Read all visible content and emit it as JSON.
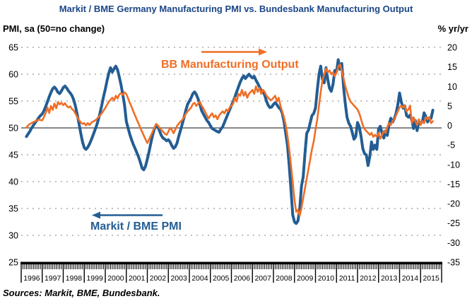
{
  "title": "Markit / BME Germany Manufacturing PMI vs. Bundesbank Manufacturing Output",
  "axes": {
    "left_label": "PMI, sa (50=no change)",
    "right_label": "% yr/yr",
    "left_ticks": [
      65,
      60,
      55,
      50,
      45,
      40,
      35,
      30,
      25
    ],
    "right_ticks": [
      20,
      15,
      10,
      5,
      0,
      -5,
      -10,
      -15,
      -20,
      -25,
      -30,
      -35
    ],
    "years": [
      "1996",
      "1997",
      "1998",
      "1999",
      "2000",
      "2001",
      "2002",
      "2003",
      "2004",
      "2005",
      "2006",
      "2007",
      "2008",
      "2009",
      "2010",
      "2011",
      "2012",
      "2013",
      "2014",
      "2015"
    ]
  },
  "legend": {
    "pmi_label": "Markit / BME PMI",
    "output_label": "BB Manufacturing Output"
  },
  "colors": {
    "pmi": "#235D93",
    "output": "#F06E26",
    "title": "#1B4687",
    "grid": "#808080",
    "baseline_50": "#404040",
    "axis": "#000000"
  },
  "sources": "Sources: Markit, BME, Bundesbank.",
  "chart_data": {
    "type": "line",
    "frequency": "monthly",
    "x_start": "1996-04",
    "x_end": "2015-08",
    "x_axis_years": [
      1996,
      2016
    ],
    "left_ylim": [
      25,
      65
    ],
    "right_ylim": [
      -35,
      20
    ],
    "grid": "dashed horizontal at every 5 units of left axis, solid line at 50 (=0 right axis)",
    "legend_position": "annotations with arrows inside plot",
    "series": [
      {
        "name": "Markit / BME Germany Manufacturing PMI",
        "short_name": "Markit / BME PMI",
        "axis": "left",
        "color": "#235D93",
        "line_width": 4,
        "values": [
          48.4,
          48.9,
          49.4,
          50.0,
          50.5,
          51.0,
          51.4,
          51.9,
          52.3,
          52.6,
          53.2,
          54.0,
          54.9,
          55.8,
          56.6,
          57.3,
          57.6,
          57.2,
          56.6,
          56.4,
          56.9,
          57.5,
          57.8,
          57.4,
          56.9,
          56.5,
          56.0,
          55.2,
          54.0,
          52.5,
          50.8,
          49.0,
          47.4,
          46.3,
          46.0,
          46.4,
          47.0,
          47.8,
          48.6,
          49.5,
          50.4,
          51.5,
          52.8,
          54.2,
          55.8,
          57.2,
          58.8,
          60.2,
          61.2,
          60.4,
          61.0,
          61.5,
          60.8,
          59.5,
          58.0,
          56.2,
          54.2,
          51.2,
          50.0,
          48.8,
          47.8,
          46.9,
          46.2,
          45.4,
          44.6,
          43.6,
          42.5,
          42.2,
          42.9,
          44.2,
          45.6,
          47.2,
          48.6,
          49.8,
          50.4,
          50.2,
          49.4,
          48.6,
          48.1,
          47.9,
          47.6,
          47.8,
          47.4,
          46.7,
          46.2,
          46.5,
          47.2,
          48.5,
          49.6,
          50.8,
          52.0,
          53.3,
          54.4,
          55.0,
          55.6,
          56.4,
          56.7,
          56.2,
          55.4,
          54.4,
          53.2,
          52.6,
          52.0,
          51.4,
          51.0,
          50.4,
          49.9,
          49.7,
          49.5,
          49.3,
          49.2,
          49.8,
          50.2,
          51.0,
          51.8,
          52.6,
          53.4,
          54.2,
          54.9,
          55.8,
          56.7,
          57.6,
          58.5,
          59.2,
          59.7,
          59.2,
          59.6,
          60.0,
          59.6,
          59.3,
          59.6,
          58.9,
          58.3,
          57.6,
          57.0,
          56.8,
          56.1,
          55.0,
          54.2,
          53.8,
          53.9,
          54.4,
          54.7,
          54.3,
          53.8,
          53.5,
          52.8,
          51.2,
          49.0,
          46.8,
          43.0,
          38.5,
          33.8,
          32.5,
          32.2,
          32.7,
          35.0,
          39.2,
          40.9,
          45.2,
          49.0,
          49.6,
          51.0,
          52.3,
          52.7,
          53.7,
          57.0,
          60.0,
          61.5,
          59.0,
          58.4,
          61.2,
          59.0,
          57.4,
          56.8,
          58.1,
          60.7,
          60.5,
          62.7,
          60.9,
          62.0,
          57.7,
          54.6,
          52.0,
          50.9,
          50.3,
          49.1,
          47.9,
          48.4,
          51.0,
          50.2,
          48.4,
          46.2,
          45.2,
          45.0,
          43.0,
          44.7,
          47.4,
          46.0,
          46.8,
          46.0,
          49.8,
          50.3,
          49.0,
          48.1,
          49.4,
          48.6,
          50.7,
          51.8,
          51.1,
          51.7,
          52.7,
          54.3,
          56.5,
          54.8,
          53.7,
          54.1,
          52.3,
          52.0,
          52.4,
          51.4,
          49.9,
          51.4,
          49.5,
          51.2,
          50.9,
          51.1,
          52.8,
          52.1,
          51.1,
          51.9,
          51.8,
          53.3
        ]
      },
      {
        "name": "Bundesbank Manufacturing Output (% yr/yr)",
        "short_name": "BB Manufacturing Output",
        "axis": "right",
        "color": "#F06E26",
        "line_width": 2.6,
        "values": [
          -0.5,
          0.0,
          0.4,
          0.6,
          0.9,
          1.1,
          1.3,
          1.5,
          1.4,
          1.3,
          2.2,
          3.2,
          4.6,
          3.2,
          5.0,
          4.0,
          5.6,
          4.4,
          6.0,
          5.4,
          5.8,
          5.2,
          5.7,
          5.0,
          4.6,
          4.9,
          4.2,
          3.8,
          3.0,
          2.2,
          1.4,
          0.8,
          0.4,
          0.6,
          0.0,
          0.6,
          0.1,
          0.7,
          1.0,
          1.2,
          1.6,
          2.1,
          2.6,
          3.1,
          3.8,
          4.5,
          5.3,
          6.1,
          6.6,
          7.1,
          6.4,
          7.6,
          6.9,
          7.9,
          8.3,
          7.8,
          8.5,
          8.0,
          7.0,
          5.8,
          4.8,
          3.6,
          2.6,
          1.5,
          0.5,
          -0.6,
          -1.6,
          -2.6,
          -3.6,
          -4.5,
          -3.6,
          -2.6,
          -1.6,
          -0.6,
          0.4,
          0.0,
          -0.6,
          -1.1,
          -1.6,
          -2.1,
          -2.4,
          -1.6,
          -0.6,
          -1.1,
          -2.0,
          -1.0,
          -0.1,
          0.5,
          1.0,
          1.5,
          2.1,
          3.0,
          3.6,
          4.1,
          4.6,
          5.5,
          5.8,
          5.0,
          5.6,
          6.1,
          5.0,
          4.4,
          3.5,
          2.6,
          1.8,
          2.6,
          3.1,
          2.1,
          2.6,
          1.6,
          2.6,
          3.1,
          3.6,
          3.1,
          4.1,
          3.6,
          4.6,
          5.1,
          5.6,
          7.1,
          6.1,
          8.1,
          7.6,
          9.1,
          7.6,
          8.6,
          7.1,
          8.1,
          8.6,
          9.1,
          8.1,
          10.0,
          8.6,
          9.6,
          8.1,
          9.1,
          8.6,
          7.6,
          7.1,
          6.6,
          6.6,
          7.1,
          7.6,
          6.1,
          7.1,
          5.1,
          3.6,
          2.1,
          0.1,
          -2.6,
          -6.1,
          -10.1,
          -14.6,
          -19.1,
          -22.1,
          -21.6,
          -23.1,
          -21.1,
          -18.6,
          -16.1,
          -13.6,
          -11.1,
          -8.6,
          -6.1,
          -4.1,
          -1.1,
          1.6,
          5.1,
          8.6,
          11.6,
          13.1,
          14.6,
          13.6,
          14.1,
          13.1,
          13.6,
          12.6,
          13.6,
          15.1,
          15.6,
          14.1,
          12.1,
          10.1,
          8.6,
          7.1,
          6.1,
          5.6,
          5.1,
          4.6,
          4.1,
          3.1,
          1.6,
          0.1,
          -0.9,
          -1.4,
          -1.9,
          -2.4,
          -1.9,
          -2.9,
          -2.4,
          -2.9,
          -1.9,
          -3.4,
          -2.4,
          -1.4,
          -1.9,
          -0.4,
          0.6,
          0.1,
          1.1,
          1.6,
          2.6,
          3.6,
          4.6,
          5.1,
          4.6,
          5.1,
          3.6,
          4.1,
          5.1,
          0.6,
          2.1,
          1.1,
          0.1,
          1.6,
          0.1,
          1.1,
          0.6,
          2.1,
          1.6,
          2.1,
          0.6,
          1.1
        ]
      }
    ]
  }
}
